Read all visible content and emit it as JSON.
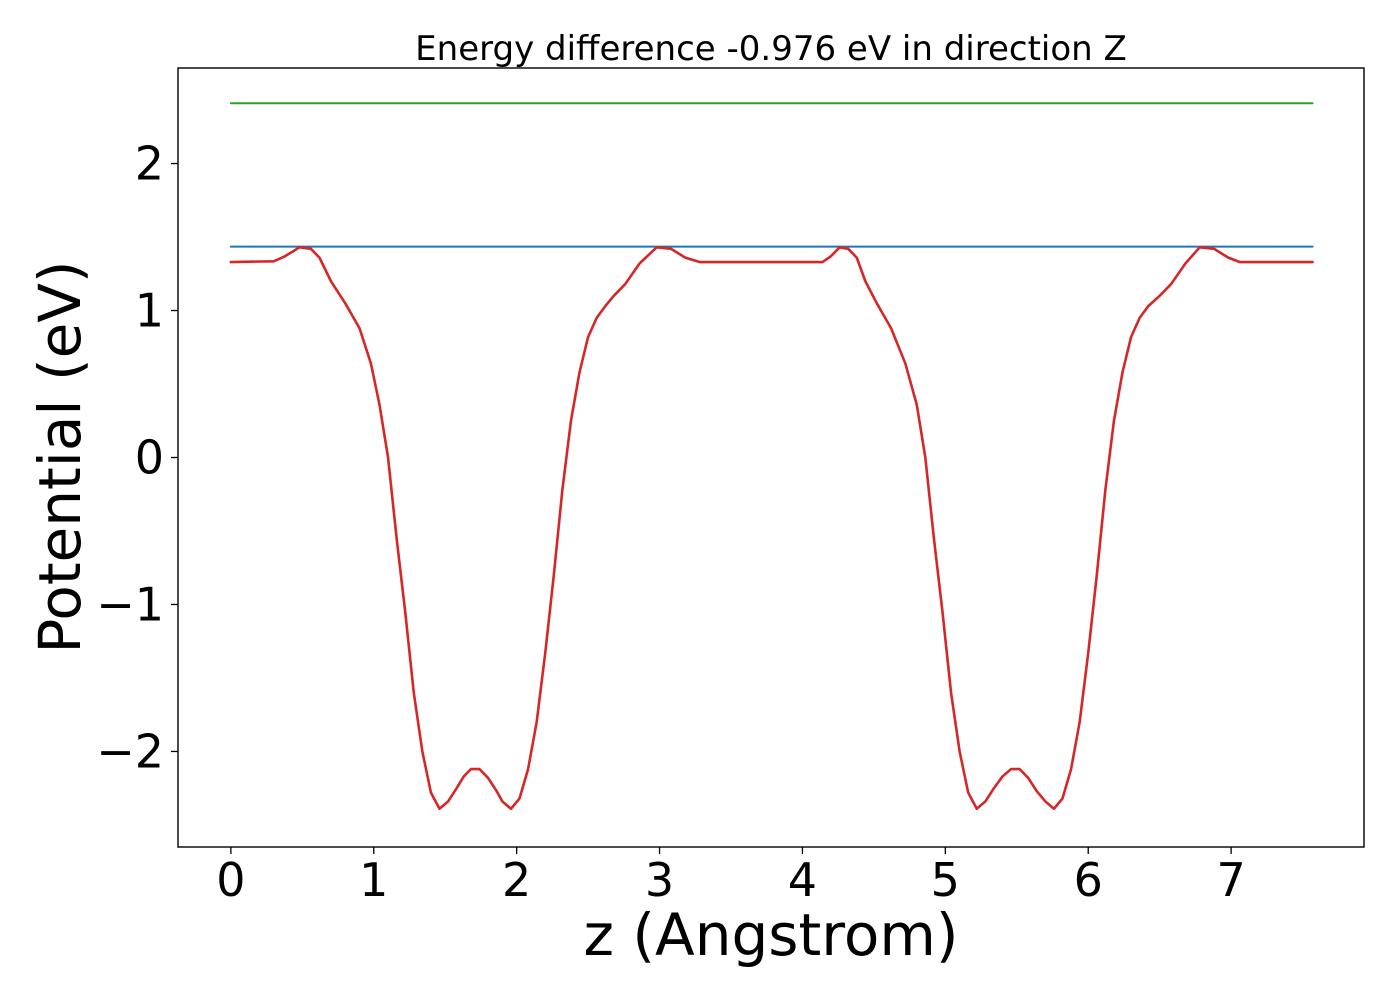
{
  "chart_data": {
    "type": "line",
    "title": "Energy difference -0.976 eV in direction Z",
    "xlabel": "z (Angstrom)",
    "ylabel": "Potential (eV)",
    "xlim": [
      -0.37,
      7.93
    ],
    "ylim": [
      -2.65,
      2.65
    ],
    "xticks": [
      0,
      1,
      2,
      3,
      4,
      5,
      6,
      7
    ],
    "yticks": [
      -2,
      -1,
      0,
      1,
      2
    ],
    "ytick_labels": [
      "−2",
      "−1",
      "0",
      "1",
      "2"
    ],
    "grid": false,
    "legend": "none",
    "series": [
      {
        "color": "#2ca02c",
        "x": [
          0,
          7.57
        ],
        "y": [
          2.41,
          2.41
        ]
      },
      {
        "color": "#1f77b4",
        "x": [
          0,
          7.57
        ],
        "y": [
          1.435,
          1.435
        ]
      },
      {
        "color": "#d62728",
        "x": [
          0,
          0.3,
          0.38,
          0.48,
          0.56,
          0.62,
          0.7,
          0.8,
          0.9,
          0.98,
          1.04,
          1.1,
          1.16,
          1.22,
          1.28,
          1.34,
          1.4,
          1.46,
          1.52,
          1.58,
          1.63,
          1.68,
          1.74,
          1.8,
          1.86,
          1.9,
          1.96,
          2.02,
          2.08,
          2.14,
          2.2,
          2.26,
          2.32,
          2.38,
          2.44,
          2.5,
          2.56,
          2.62,
          2.68,
          2.76,
          2.86,
          2.98,
          3.08,
          3.18,
          3.28,
          3.34,
          3.4,
          3.46,
          3.54,
          3.9,
          4.14,
          4.2,
          4.26,
          4.32,
          4.38,
          4.44,
          4.52,
          4.62,
          4.72,
          4.8,
          4.86,
          4.92,
          4.98,
          5.04,
          5.1,
          5.16,
          5.22,
          5.28,
          5.34,
          5.4,
          5.46,
          5.52,
          5.58,
          5.64,
          5.7,
          5.76,
          5.82,
          5.88,
          5.94,
          6.0,
          6.06,
          6.12,
          6.18,
          6.24,
          6.3,
          6.36,
          6.42,
          6.5,
          6.58,
          6.68,
          6.78,
          6.88,
          6.98,
          7.06,
          7.12,
          7.18,
          7.24,
          7.32,
          7.57
        ],
        "y": [
          1.33,
          1.335,
          1.37,
          1.43,
          1.42,
          1.36,
          1.2,
          1.05,
          0.88,
          0.64,
          0.36,
          0.0,
          -0.55,
          -1.05,
          -1.6,
          -2.0,
          -2.28,
          -2.39,
          -2.34,
          -2.25,
          -2.17,
          -2.12,
          -2.12,
          -2.18,
          -2.27,
          -2.34,
          -2.39,
          -2.32,
          -2.12,
          -1.8,
          -1.33,
          -0.8,
          -0.22,
          0.25,
          0.58,
          0.82,
          0.95,
          1.03,
          1.1,
          1.18,
          1.32,
          1.43,
          1.42,
          1.36,
          1.33,
          1.33,
          1.33,
          1.33,
          1.33,
          1.33,
          1.33,
          1.37,
          1.43,
          1.42,
          1.36,
          1.2,
          1.05,
          0.88,
          0.64,
          0.36,
          0.0,
          -0.55,
          -1.05,
          -1.6,
          -2.0,
          -2.28,
          -2.39,
          -2.34,
          -2.25,
          -2.17,
          -2.12,
          -2.12,
          -2.18,
          -2.27,
          -2.34,
          -2.39,
          -2.32,
          -2.12,
          -1.8,
          -1.33,
          -0.8,
          -0.22,
          0.25,
          0.58,
          0.82,
          0.95,
          1.03,
          1.1,
          1.18,
          1.32,
          1.43,
          1.42,
          1.36,
          1.33,
          1.33,
          1.33,
          1.33,
          1.33,
          1.33
        ]
      }
    ]
  }
}
